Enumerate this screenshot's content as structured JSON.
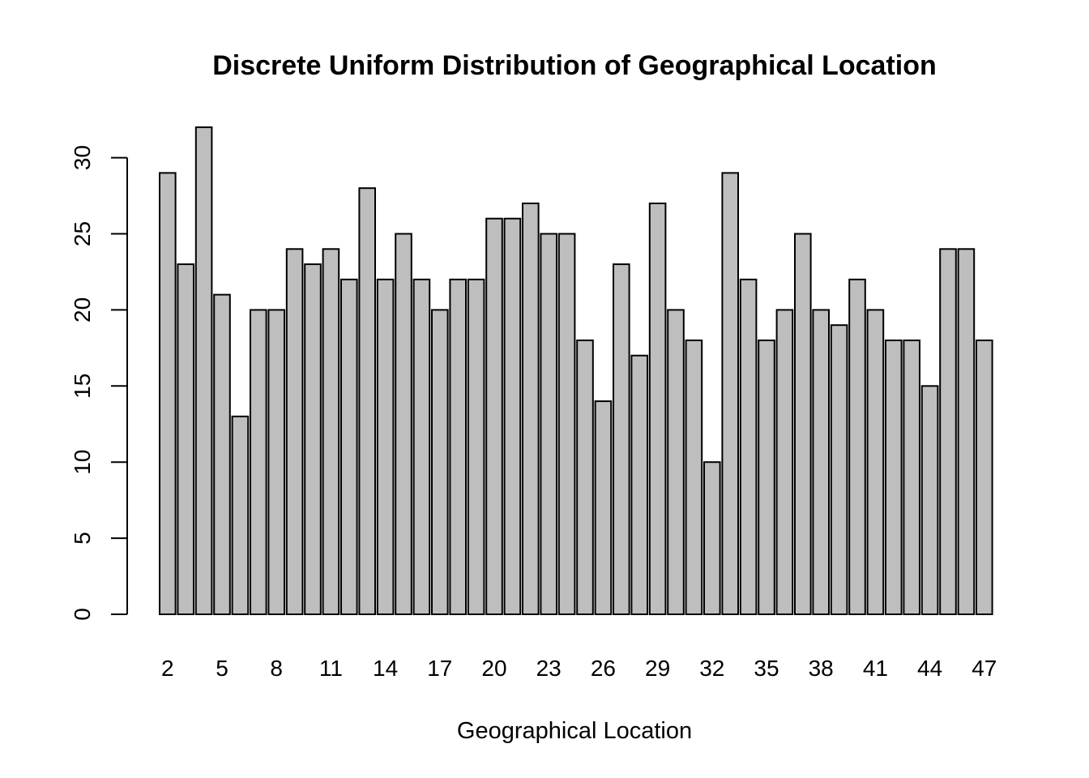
{
  "chart_data": {
    "type": "bar",
    "title": "Discrete Uniform Distribution of Geographical Location",
    "xlabel": "Geographical Location",
    "ylabel": "",
    "categories": [
      "2",
      "3",
      "4",
      "5",
      "6",
      "7",
      "8",
      "9",
      "10",
      "11",
      "12",
      "13",
      "14",
      "15",
      "16",
      "17",
      "18",
      "19",
      "20",
      "21",
      "22",
      "23",
      "24",
      "25",
      "26",
      "27",
      "28",
      "29",
      "30",
      "31",
      "32",
      "33",
      "34",
      "35",
      "36",
      "37",
      "38",
      "39",
      "40",
      "41",
      "42",
      "43",
      "44",
      "45",
      "46",
      "47"
    ],
    "values": [
      29,
      23,
      32,
      21,
      13,
      20,
      20,
      24,
      23,
      24,
      22,
      28,
      22,
      25,
      22,
      20,
      22,
      22,
      26,
      26,
      27,
      25,
      25,
      18,
      14,
      23,
      17,
      27,
      20,
      18,
      10,
      29,
      22,
      18,
      20,
      25,
      20,
      19,
      22,
      20,
      18,
      18,
      15,
      24,
      24,
      18
    ],
    "x_tick_labels": [
      "2",
      "5",
      "8",
      "11",
      "14",
      "17",
      "20",
      "23",
      "26",
      "29",
      "32",
      "35",
      "38",
      "41",
      "44",
      "47"
    ],
    "y_ticks": [
      0,
      5,
      10,
      15,
      20,
      25,
      30
    ],
    "ylim": [
      0,
      32
    ],
    "bar_color": "#bebebe",
    "grid": false
  }
}
